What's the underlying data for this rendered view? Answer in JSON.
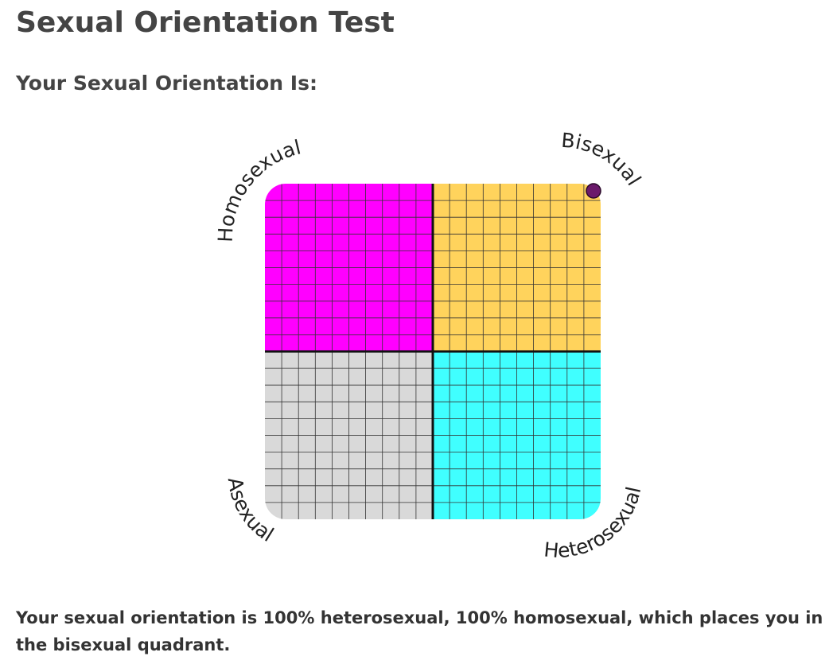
{
  "header": {
    "title": "Sexual Orientation Test",
    "subtitle": "Your Sexual Orientation Is:"
  },
  "chart_data": {
    "type": "quadrant",
    "quadrants": [
      {
        "name": "Homosexual",
        "color": "#ff00ff"
      },
      {
        "name": "Bisexual",
        "color": "#ffd35c"
      },
      {
        "name": "Asexual",
        "color": "#d9d9d9"
      },
      {
        "name": "Heterosexual",
        "color": "#40ffff"
      }
    ],
    "x": [
      100
    ],
    "y": [
      100
    ],
    "xlim": [
      0,
      100
    ],
    "ylim": [
      0,
      100
    ],
    "point_color": "#6b1a6b",
    "grid": true
  },
  "result": "Your sexual orientation is 100% heterosexual, 100% homosexual, which places you in the bisexual quadrant."
}
